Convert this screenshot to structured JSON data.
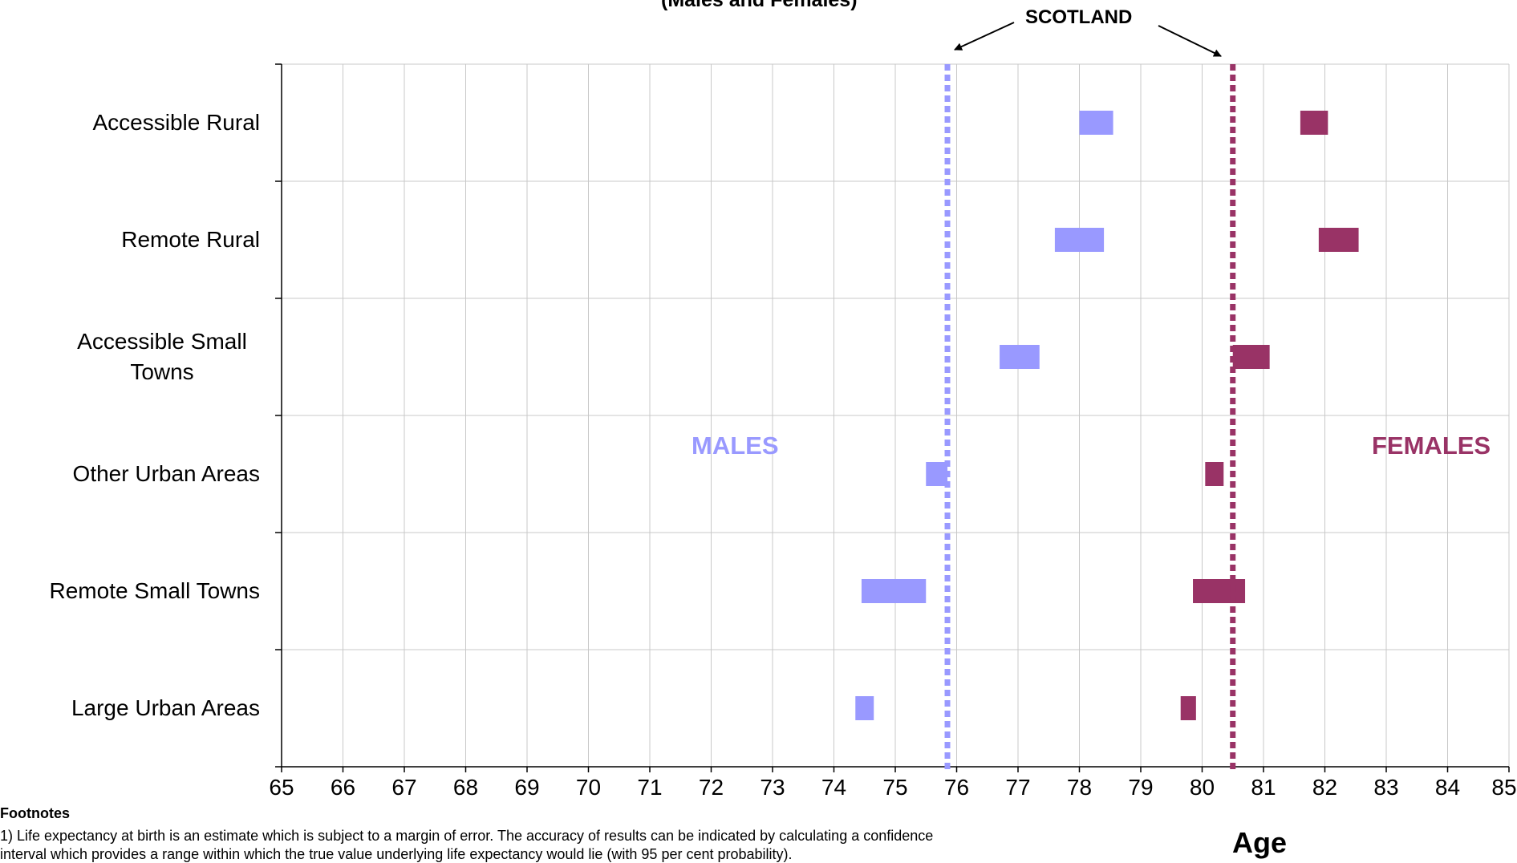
{
  "title": "(Males and Females)",
  "annotations": {
    "scotland": "SCOTLAND",
    "males": "MALES",
    "females": "FEMALES"
  },
  "xlabel": "Age",
  "footnotes": {
    "title": "Footnotes",
    "line1": "1) Life expectancy at birth is an estimate which is subject to a margin of error. The accuracy of results can be indicated by calculating a confidence",
    "line2": "interval which provides a range within which the true value underlying life expectancy would lie (with 95 per cent probability)."
  },
  "colors": {
    "males": "#9999ff",
    "females": "#993366",
    "grid": "#c8c8c8"
  },
  "chart_data": {
    "type": "bar",
    "orientation": "horizontal-range",
    "xlim": [
      65,
      85
    ],
    "x_ticks": [
      "65",
      "66",
      "67",
      "68",
      "69",
      "70",
      "71",
      "72",
      "73",
      "74",
      "75",
      "76",
      "77",
      "78",
      "79",
      "80",
      "81",
      "82",
      "83",
      "84",
      "85"
    ],
    "categories": [
      "Accessible Rural",
      "Remote Rural",
      "Accessible Small Towns",
      "Other Urban Areas",
      "Remote Small Towns",
      "Large Urban Areas"
    ],
    "series": [
      {
        "name": "MALES",
        "ranges": [
          [
            78.0,
            78.55
          ],
          [
            77.6,
            78.4
          ],
          [
            76.7,
            77.35
          ],
          [
            75.5,
            75.85
          ],
          [
            74.45,
            75.5
          ],
          [
            74.35,
            74.65
          ]
        ]
      },
      {
        "name": "FEMALES",
        "ranges": [
          [
            81.6,
            82.05
          ],
          [
            81.9,
            82.55
          ],
          [
            80.5,
            81.1
          ],
          [
            80.05,
            80.35
          ],
          [
            79.85,
            80.7
          ],
          [
            79.65,
            79.9
          ]
        ]
      }
    ],
    "reference_lines": [
      {
        "series": "MALES",
        "value": 75.85
      },
      {
        "series": "FEMALES",
        "value": 80.5
      }
    ],
    "grid": true
  }
}
